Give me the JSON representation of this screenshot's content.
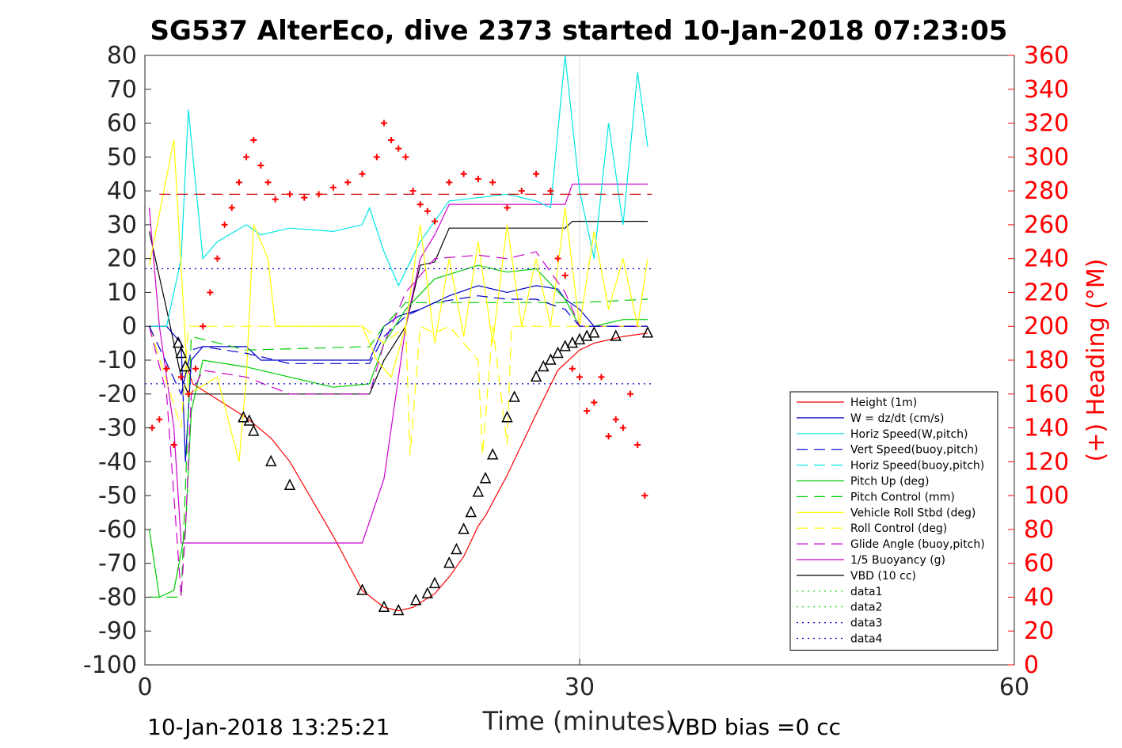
{
  "chart_data": {
    "type": "line",
    "title": "SG537 AlterEco, dive 2373 started 10-Jan-2018 07:23:05",
    "xlabel": "Time (minutes)",
    "ylabel_right": "(+) Heading (°M)",
    "xlim": [
      0,
      60
    ],
    "ylim_left": [
      -100,
      80
    ],
    "ylim_right": [
      0,
      360
    ],
    "x_ticks": [
      "0",
      "30",
      "60"
    ],
    "y_ticks_left": [
      "80",
      "70",
      "60",
      "50",
      "40",
      "30",
      "20",
      "10",
      "0",
      "-10",
      "-20",
      "-30",
      "-40",
      "-50",
      "-60",
      "-70",
      "-80",
      "-90",
      "-100"
    ],
    "y_ticks_right": [
      "360",
      "340",
      "320",
      "300",
      "280",
      "260",
      "240",
      "220",
      "200",
      "180",
      "160",
      "140",
      "120",
      "100",
      "80",
      "60",
      "40",
      "20",
      "0"
    ],
    "grid": "x-only at 30",
    "legend_position": "lower-right inside",
    "footer_left": "10-Jan-2018 13:25:21",
    "footer_right": "VBD bias =0 cc",
    "legend": [
      {
        "label": "Height (1m)",
        "color": "#ff0000",
        "style": "solid"
      },
      {
        "label": "W = dz/dt (cm/s)",
        "color": "#0000cc",
        "style": "solid"
      },
      {
        "label": "Horiz Speed(W,pitch)",
        "color": "#00e5e5",
        "style": "solid"
      },
      {
        "label": "Vert Speed(buoy,pitch)",
        "color": "#0000cc",
        "style": "dashed"
      },
      {
        "label": "Horiz Speed(buoy,pitch)",
        "color": "#00e5e5",
        "style": "dashed"
      },
      {
        "label": "Pitch Up (deg)",
        "color": "#00cc00",
        "style": "solid"
      },
      {
        "label": "Pitch Control (mm)",
        "color": "#00cc00",
        "style": "dashed"
      },
      {
        "label": "Vehicle Roll Stbd (deg)",
        "color": "#ffff00",
        "style": "solid"
      },
      {
        "label": "Roll Control (deg)",
        "color": "#ffff00",
        "style": "dashed"
      },
      {
        "label": "Glide Angle (buoy,pitch)",
        "color": "#cc00cc",
        "style": "dashed"
      },
      {
        "label": "1/5 Buoyancy (g)",
        "color": "#cc00cc",
        "style": "solid"
      },
      {
        "label": "VBD (10 cc)",
        "color": "#000000",
        "style": "solid"
      },
      {
        "label": "data1",
        "color": "#00cc00",
        "style": "dotted"
      },
      {
        "label": "data2",
        "color": "#00cc00",
        "style": "dotted"
      },
      {
        "label": "data3",
        "color": "#0000cc",
        "style": "dotted"
      },
      {
        "label": "data4",
        "color": "#0000cc",
        "style": "dotted"
      }
    ],
    "series": [
      {
        "key": "height",
        "color": "#ff0000",
        "style": "solid",
        "axis": "left",
        "x": [
          3,
          3.3,
          7,
          8.7,
          10,
          13,
          15,
          16.5,
          17.5,
          18.5,
          20,
          21,
          22,
          23,
          23.5,
          25,
          27,
          28.5,
          30,
          31,
          33,
          34.7
        ],
        "y": [
          -13,
          -17,
          -27,
          -33,
          -40,
          -62,
          -78,
          -83,
          -84,
          -83,
          -79,
          -74,
          -68,
          -59,
          -56,
          -44,
          -26,
          -13,
          -7,
          -5,
          -3,
          -2
        ]
      },
      {
        "key": "vbd",
        "color": "#000000",
        "style": "solid",
        "axis": "left",
        "x": [
          0.3,
          1.5,
          2.5,
          3,
          15.5,
          16.5,
          18,
          19,
          20,
          21,
          23,
          25,
          27,
          29,
          29.5,
          34.7
        ],
        "y": [
          28,
          5,
          -15,
          -20,
          -20,
          -10,
          0,
          18,
          19,
          29,
          29,
          29,
          29,
          29,
          31,
          31
        ]
      },
      {
        "key": "buoyancy",
        "color": "#cc00cc",
        "style": "solid",
        "axis": "left",
        "x": [
          0.3,
          1,
          2,
          2.5,
          3,
          15,
          16.5,
          18,
          19,
          20,
          21,
          27,
          29,
          29.5,
          34.7
        ],
        "y": [
          35,
          0,
          -30,
          -64,
          -64,
          -64,
          -45,
          0,
          20,
          27,
          36,
          36,
          36,
          42,
          42
        ]
      },
      {
        "key": "w",
        "color": "#0000cc",
        "style": "solid",
        "axis": "left",
        "x": [
          0.3,
          1.5,
          2.5,
          2.8,
          3.2,
          4,
          7,
          8,
          10,
          13,
          15.5,
          16.5,
          17.5,
          19,
          21,
          23,
          25,
          27,
          28.5,
          29,
          30,
          31,
          34.7
        ],
        "y": [
          0,
          0,
          -5,
          -40,
          -10,
          -6,
          -6,
          -10,
          -10,
          -10,
          -10,
          0,
          3,
          5,
          9,
          12,
          10,
          12,
          11,
          8,
          5,
          0,
          0
        ]
      },
      {
        "key": "horiz_w",
        "color": "#00e5e5",
        "style": "solid",
        "axis": "left",
        "x": [
          0.3,
          1.5,
          2.5,
          3,
          4,
          5,
          7,
          8,
          10,
          13,
          15,
          15.5,
          16.5,
          17.5,
          19,
          21,
          23,
          25,
          27,
          28,
          29,
          30,
          31,
          32,
          33,
          34,
          34.7
        ],
        "y": [
          0,
          0,
          20,
          64,
          20,
          25,
          30,
          27,
          29,
          28,
          30,
          35,
          22,
          12,
          25,
          37,
          38,
          39,
          37,
          35,
          80,
          40,
          20,
          60,
          30,
          75,
          53
        ]
      },
      {
        "key": "pitch",
        "color": "#00cc00",
        "style": "solid",
        "axis": "left",
        "x": [
          0.3,
          1,
          2,
          2.8,
          3.2,
          4,
          7,
          10,
          13,
          15.5,
          16.5,
          18,
          20,
          23,
          25,
          27,
          29,
          30,
          31,
          33,
          34.7
        ],
        "y": [
          -60,
          -80,
          -78,
          -60,
          -25,
          -10,
          -12,
          -15,
          -18,
          -17,
          -5,
          5,
          14,
          18,
          16,
          17,
          8,
          0,
          0,
          2,
          2
        ]
      },
      {
        "key": "pitch_control",
        "color": "#00cc00",
        "style": "dashed",
        "axis": "left",
        "x": [
          0.3,
          2.5,
          3.2,
          7,
          15.5,
          16.5,
          18,
          30,
          34.7
        ],
        "y": [
          -80,
          -80,
          -3,
          -7,
          -6,
          0,
          7,
          7,
          8
        ]
      },
      {
        "key": "roll",
        "color": "#ffff00",
        "style": "solid",
        "axis": "left",
        "x": [
          0.3,
          2,
          3,
          5,
          6.5,
          7,
          7.5,
          8.5,
          9,
          15,
          16,
          17,
          18,
          19,
          20,
          21,
          22,
          23,
          24,
          25,
          26,
          27,
          28,
          29,
          30,
          31,
          32,
          33,
          34,
          34.7
        ],
        "y": [
          18,
          55,
          -20,
          -15,
          -40,
          -15,
          30,
          20,
          0,
          0,
          -10,
          -15,
          0,
          30,
          -5,
          20,
          -3,
          25,
          -5,
          30,
          0,
          20,
          0,
          35,
          0,
          28,
          5,
          20,
          0,
          20
        ]
      },
      {
        "key": "roll_control",
        "color": "#ffff00",
        "style": "dashed",
        "axis": "left",
        "x": [
          0.3,
          2.5,
          3,
          15,
          16.5,
          18,
          18.3,
          19,
          20,
          21,
          23,
          23.3,
          24,
          25,
          25.3,
          27,
          29,
          30,
          34.7
        ],
        "y": [
          0,
          -30,
          0,
          0,
          -5,
          0,
          -38,
          0,
          -2,
          0,
          -10,
          -38,
          0,
          -35,
          0,
          0,
          0,
          0,
          0
        ]
      },
      {
        "key": "glide",
        "color": "#cc00cc",
        "style": "dashed",
        "axis": "left",
        "x": [
          0.3,
          1.5,
          2.5,
          2.8,
          3.2,
          4,
          7,
          10,
          13,
          15.5,
          16.5,
          18,
          20,
          23,
          25,
          27,
          29,
          30,
          34.7
        ],
        "y": [
          0,
          -20,
          -80,
          -60,
          -20,
          -13,
          -15,
          -20,
          -20,
          -20,
          -5,
          10,
          20,
          21,
          20,
          22,
          10,
          0,
          0
        ]
      },
      {
        "key": "w_buoy",
        "color": "#0000cc",
        "style": "dashed",
        "axis": "left",
        "x": [
          0.3,
          2.5,
          3.2,
          4,
          7,
          10,
          15.5,
          16.5,
          18,
          20,
          23,
          25,
          27,
          29,
          30,
          34.7
        ],
        "y": [
          0,
          -20,
          -7,
          -6,
          -8,
          -11,
          -11,
          -3,
          3,
          7,
          9,
          8,
          8,
          5,
          0,
          0
        ]
      },
      {
        "key": "data_upper",
        "color": "#0000cc",
        "style": "dotted",
        "axis": "left",
        "x": [
          0,
          35
        ],
        "y": [
          17,
          17
        ]
      },
      {
        "key": "data_lower",
        "color": "#0000cc",
        "style": "dotted",
        "axis": "left",
        "x": [
          0,
          35
        ],
        "y": [
          -17,
          -17
        ]
      },
      {
        "key": "heading_ref",
        "color": "#cc0000",
        "style": "dashed",
        "axis": "right",
        "x": [
          1,
          35
        ],
        "y": [
          278,
          278
        ]
      }
    ],
    "heading_points": {
      "axis": "right",
      "color": "#ff0000",
      "marker": "+",
      "x": [
        0.5,
        1,
        1.5,
        2,
        2.5,
        3,
        3.5,
        4,
        4.5,
        5,
        5.5,
        6,
        6.5,
        7,
        7.5,
        8,
        8.5,
        9,
        10,
        11,
        12,
        13,
        14,
        15,
        16,
        16.5,
        17,
        17.5,
        18,
        18.5,
        19,
        19.5,
        20,
        21,
        22,
        23,
        24,
        25,
        26,
        27,
        28,
        28.5,
        29,
        29.5,
        30,
        30.5,
        31,
        31.5,
        32,
        32.5,
        33,
        33.5,
        34,
        34.5
      ],
      "y": [
        140,
        145,
        175,
        130,
        170,
        160,
        175,
        200,
        220,
        240,
        260,
        270,
        285,
        300,
        310,
        295,
        285,
        275,
        278,
        276,
        278,
        282,
        285,
        290,
        300,
        320,
        310,
        305,
        300,
        280,
        272,
        268,
        262,
        285,
        290,
        287,
        285,
        270,
        280,
        290,
        280,
        240,
        230,
        175,
        170,
        150,
        155,
        170,
        135,
        145,
        140,
        160,
        130,
        100
      ]
    },
    "markers": {
      "axis": "left",
      "color": "#000000",
      "marker": "triangle",
      "x": [
        2.3,
        2.5,
        2.8,
        6.8,
        7.2,
        7.5,
        8.7,
        10,
        15,
        16.5,
        17.5,
        18.7,
        19.5,
        20,
        21,
        21.5,
        22,
        22.5,
        23,
        23.5,
        24,
        25,
        25.5,
        27,
        27.5,
        28,
        28.5,
        29,
        29.5,
        30,
        30.5,
        31,
        32.5,
        34.7
      ],
      "y": [
        -5,
        -8,
        -12,
        -27,
        -28,
        -31,
        -40,
        -47,
        -78,
        -83,
        -84,
        -81,
        -79,
        -76,
        -70,
        -66,
        -60,
        -55,
        -49,
        -45,
        -38,
        -27,
        -21,
        -15,
        -12,
        -10,
        -8,
        -6,
        -5,
        -4,
        -3,
        -2,
        -3,
        -2
      ]
    }
  }
}
